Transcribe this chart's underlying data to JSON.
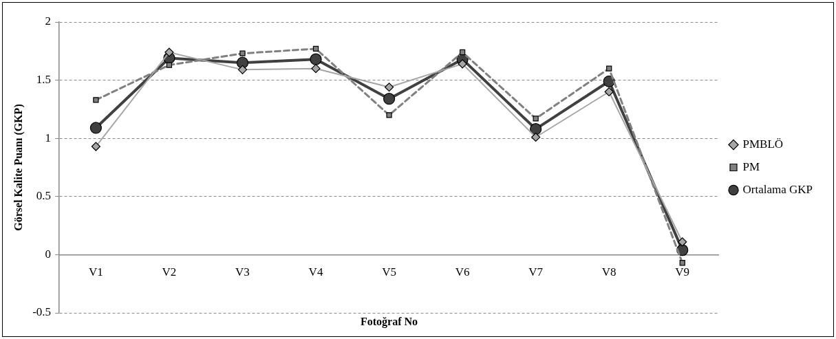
{
  "chart_data": {
    "type": "line",
    "xlabel": "Fotoğraf No",
    "ylabel": "Görsel Kalite Puanı (GKP)",
    "categories": [
      "V1",
      "V2",
      "V3",
      "V4",
      "V5",
      "V6",
      "V7",
      "V8",
      "V9"
    ],
    "series": [
      {
        "name": "PMBLÖ",
        "color": "#a6a6a6",
        "marker": "diamond",
        "line_style": "solid",
        "values": [
          0.93,
          1.74,
          1.59,
          1.6,
          1.44,
          1.64,
          1.01,
          1.4,
          0.11
        ]
      },
      {
        "name": "PM",
        "color": "#808080",
        "marker": "square",
        "line_style": "dashed",
        "values": [
          1.33,
          1.63,
          1.73,
          1.77,
          1.2,
          1.74,
          1.17,
          1.6,
          -0.07
        ]
      },
      {
        "name": "Ortalama GKP",
        "color": "#404040",
        "marker": "circle",
        "line_style": "solid",
        "values": [
          1.09,
          1.69,
          1.65,
          1.68,
          1.34,
          1.68,
          1.08,
          1.49,
          0.04
        ]
      }
    ],
    "ylim": [
      -0.5,
      2
    ],
    "yticks": [
      -0.5,
      0,
      0.5,
      1,
      1.5,
      2
    ],
    "grid": "y",
    "legend": "right"
  }
}
